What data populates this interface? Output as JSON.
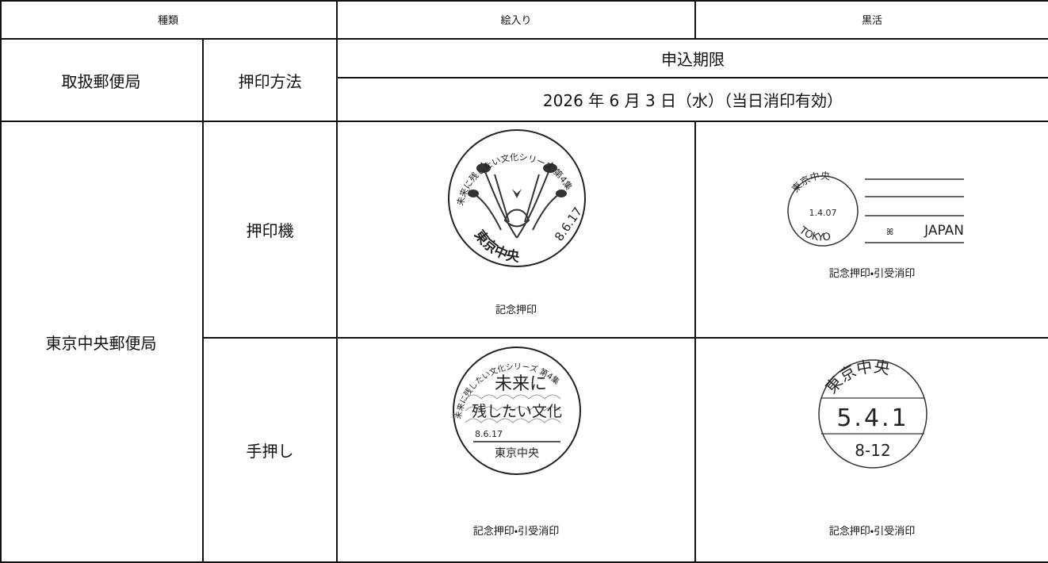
{
  "table": {
    "header": [
      "種類",
      "絵入り",
      "黒活"
    ],
    "office_header": "取扱郵便局",
    "method_header": "押印方法",
    "deadline_label": "申込期限",
    "deadline": "2026 年 6 月 3 日（水）（当日消印有効）",
    "office": "東京中央郵便局",
    "rows": [
      {
        "method": "押印機",
        "cells": [
          {
            "stamp": {
              "arc": "未来に残したい文化シリーズ 第4集",
              "office": "東京中央",
              "date": "8.6.17"
            },
            "caption": "記念押印"
          },
          {
            "stamp": {
              "office": "東京中央",
              "date": "1.4.07",
              "city": "TOKYO",
              "country": "JAPAN"
            },
            "caption": "記念押印・引受消印"
          }
        ]
      },
      {
        "method": "手押し",
        "cells": [
          {
            "stamp": {
              "arc": "未来に残したい文化シリーズ 第4集",
              "big_top": "未来に",
              "big_bottom": "残したい文化",
              "date": "8.6.17",
              "office": "東京中央"
            },
            "caption": "記念押印・引受消印"
          },
          {
            "stamp": {
              "office": "東京中央",
              "date": "5.4.1",
              "time": "8-12"
            },
            "caption": "記念押印・引受消印"
          }
        ]
      }
    ]
  }
}
